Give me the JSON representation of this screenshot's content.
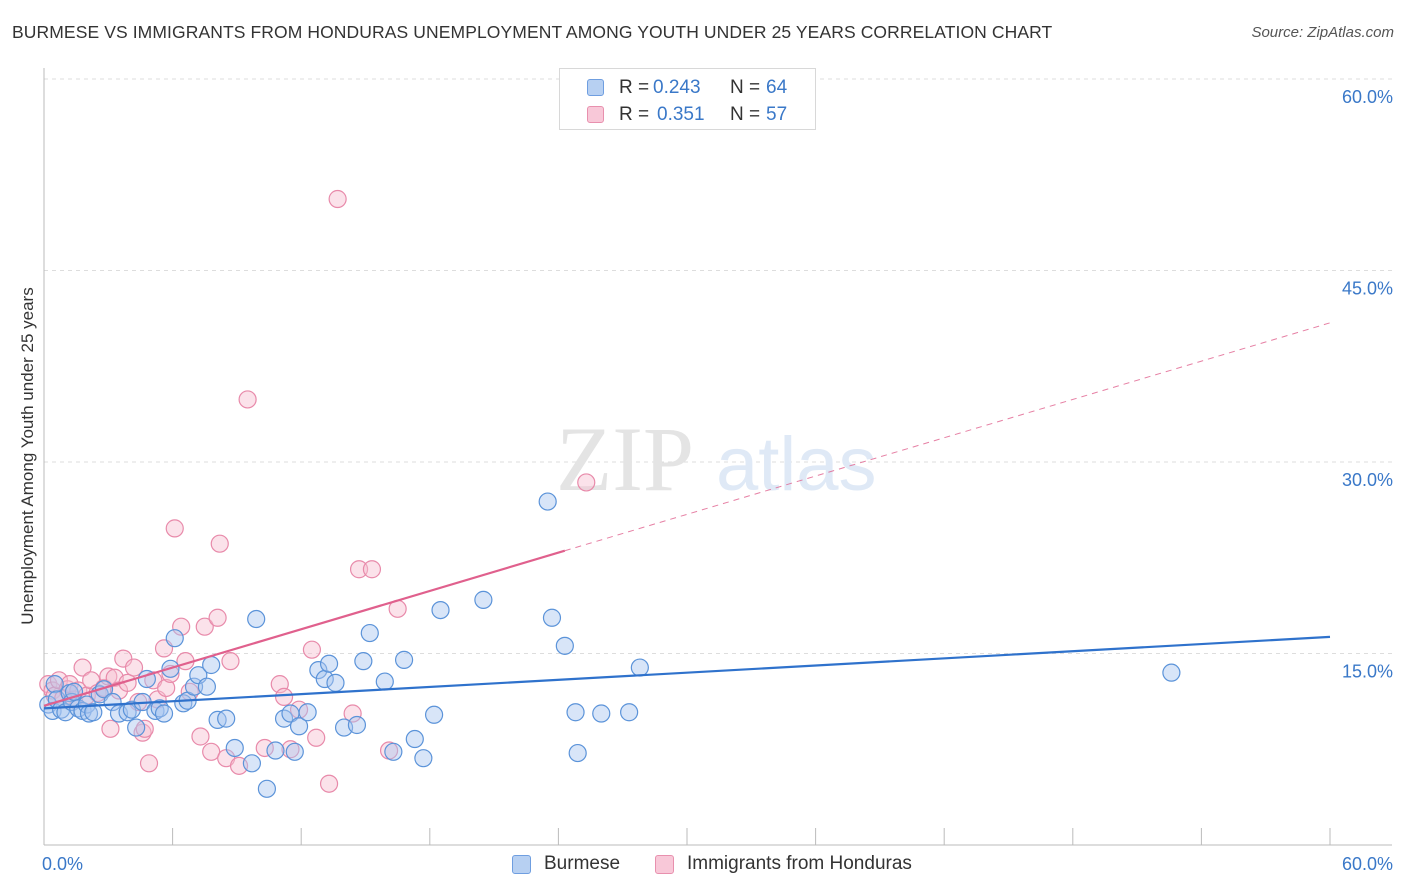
{
  "chart_data": {
    "type": "scatter",
    "title": "BURMESE VS IMMIGRANTS FROM HONDURAS UNEMPLOYMENT AMONG YOUTH UNDER 25 YEARS CORRELATION CHART",
    "source": "Source: ZipAtlas.com",
    "xlabel": "",
    "ylabel": "Unemployment Among Youth under 25 years",
    "xlim": [
      0,
      60
    ],
    "ylim": [
      0,
      60
    ],
    "x_tick_labels": [
      "0.0%",
      "60.0%"
    ],
    "y_ticks": [
      {
        "value": 15,
        "label": "15.0%"
      },
      {
        "value": 30,
        "label": "30.0%"
      },
      {
        "value": 45,
        "label": "45.0%"
      },
      {
        "value": 60,
        "label": "60.0%"
      }
    ],
    "watermark": {
      "zip": "ZIP",
      "atlas": "atlas"
    },
    "legend": [
      {
        "r_label": "R =",
        "r_value": "0.243",
        "n_label": "N =",
        "n_value": "64"
      },
      {
        "r_label": "R =",
        "r_value": "0.351",
        "n_label": "N =",
        "n_value": "57"
      }
    ],
    "series": [
      {
        "name": "Burmese",
        "color": "#5b93d9",
        "fill": "#a9c6ef",
        "line_color": "#2f72cc",
        "trend": {
          "x": [
            0,
            60
          ],
          "y": [
            10.7,
            16.3
          ],
          "dashed_from": null
        },
        "points": [
          [
            0.2,
            11.0
          ],
          [
            0.4,
            10.5
          ],
          [
            0.5,
            12.6
          ],
          [
            0.6,
            11.4
          ],
          [
            0.8,
            10.6
          ],
          [
            1.0,
            10.4
          ],
          [
            1.2,
            11.9
          ],
          [
            1.3,
            11.2
          ],
          [
            1.4,
            12.0
          ],
          [
            1.6,
            10.7
          ],
          [
            1.8,
            10.5
          ],
          [
            2.0,
            11.0
          ],
          [
            2.1,
            10.3
          ],
          [
            2.3,
            10.4
          ],
          [
            2.6,
            11.8
          ],
          [
            2.8,
            12.2
          ],
          [
            3.2,
            11.2
          ],
          [
            3.5,
            10.3
          ],
          [
            3.9,
            10.4
          ],
          [
            4.1,
            10.6
          ],
          [
            4.3,
            9.2
          ],
          [
            4.6,
            11.2
          ],
          [
            4.8,
            13.0
          ],
          [
            5.2,
            10.5
          ],
          [
            5.4,
            10.7
          ],
          [
            5.6,
            10.3
          ],
          [
            5.9,
            13.8
          ],
          [
            6.1,
            16.2
          ],
          [
            6.5,
            11.1
          ],
          [
            6.7,
            11.3
          ],
          [
            7.0,
            12.4
          ],
          [
            7.2,
            13.3
          ],
          [
            7.6,
            12.4
          ],
          [
            7.8,
            14.1
          ],
          [
            8.1,
            9.8
          ],
          [
            8.5,
            9.9
          ],
          [
            8.9,
            7.6
          ],
          [
            9.7,
            6.4
          ],
          [
            9.9,
            17.7
          ],
          [
            10.4,
            4.4
          ],
          [
            10.8,
            7.4
          ],
          [
            11.2,
            9.9
          ],
          [
            11.5,
            10.3
          ],
          [
            11.7,
            7.3
          ],
          [
            11.9,
            9.3
          ],
          [
            12.3,
            10.4
          ],
          [
            12.8,
            13.7
          ],
          [
            13.1,
            13.0
          ],
          [
            13.3,
            14.2
          ],
          [
            13.6,
            12.7
          ],
          [
            14.0,
            9.2
          ],
          [
            14.6,
            9.4
          ],
          [
            14.9,
            14.4
          ],
          [
            15.2,
            16.6
          ],
          [
            15.9,
            12.8
          ],
          [
            16.3,
            7.3
          ],
          [
            16.8,
            14.5
          ],
          [
            17.3,
            8.3
          ],
          [
            17.7,
            6.8
          ],
          [
            18.2,
            10.2
          ],
          [
            18.5,
            18.4
          ],
          [
            20.5,
            19.2
          ],
          [
            23.5,
            26.9
          ],
          [
            23.7,
            17.8
          ],
          [
            24.3,
            15.6
          ],
          [
            24.8,
            10.4
          ],
          [
            24.9,
            7.2
          ],
          [
            26.0,
            10.3
          ],
          [
            27.3,
            10.4
          ],
          [
            27.8,
            13.9
          ],
          [
            52.6,
            13.5
          ]
        ]
      },
      {
        "name": "Immigrants from Honduras",
        "color": "#e88aaa",
        "fill": "#f6bfd1",
        "line_color": "#e0608d",
        "trend": {
          "x": [
            0,
            60
          ],
          "y": [
            10.9,
            40.9
          ],
          "dashed_from": 24.3
        },
        "points": [
          [
            0.2,
            12.6
          ],
          [
            0.4,
            12.1
          ],
          [
            0.5,
            11.7
          ],
          [
            0.7,
            12.9
          ],
          [
            0.9,
            11.5
          ],
          [
            1.1,
            12.2
          ],
          [
            1.2,
            12.6
          ],
          [
            1.4,
            11.4
          ],
          [
            1.6,
            12.1
          ],
          [
            1.8,
            13.9
          ],
          [
            2.0,
            11.7
          ],
          [
            2.2,
            12.9
          ],
          [
            2.5,
            11.9
          ],
          [
            2.8,
            12.3
          ],
          [
            3.0,
            13.2
          ],
          [
            3.1,
            9.1
          ],
          [
            3.3,
            13.1
          ],
          [
            3.5,
            12.1
          ],
          [
            3.7,
            14.6
          ],
          [
            3.9,
            12.7
          ],
          [
            4.2,
            13.9
          ],
          [
            4.4,
            11.2
          ],
          [
            4.6,
            8.8
          ],
          [
            4.7,
            9.1
          ],
          [
            4.9,
            6.4
          ],
          [
            5.1,
            12.9
          ],
          [
            5.3,
            11.4
          ],
          [
            5.6,
            15.4
          ],
          [
            5.7,
            12.3
          ],
          [
            5.9,
            13.4
          ],
          [
            6.1,
            24.8
          ],
          [
            6.4,
            17.1
          ],
          [
            6.6,
            14.4
          ],
          [
            6.8,
            12.0
          ],
          [
            7.3,
            8.5
          ],
          [
            7.5,
            17.1
          ],
          [
            7.8,
            7.3
          ],
          [
            8.1,
            17.8
          ],
          [
            8.2,
            23.6
          ],
          [
            8.5,
            6.8
          ],
          [
            8.7,
            14.4
          ],
          [
            9.1,
            6.2
          ],
          [
            9.5,
            34.9
          ],
          [
            10.3,
            7.6
          ],
          [
            11.0,
            12.6
          ],
          [
            11.2,
            11.6
          ],
          [
            11.5,
            7.5
          ],
          [
            11.9,
            10.6
          ],
          [
            12.5,
            15.3
          ],
          [
            12.7,
            8.4
          ],
          [
            13.3,
            4.8
          ],
          [
            13.7,
            50.6
          ],
          [
            14.4,
            10.3
          ],
          [
            14.7,
            21.6
          ],
          [
            15.3,
            21.6
          ],
          [
            16.1,
            7.4
          ],
          [
            16.5,
            18.5
          ],
          [
            25.3,
            28.4
          ]
        ]
      }
    ]
  }
}
